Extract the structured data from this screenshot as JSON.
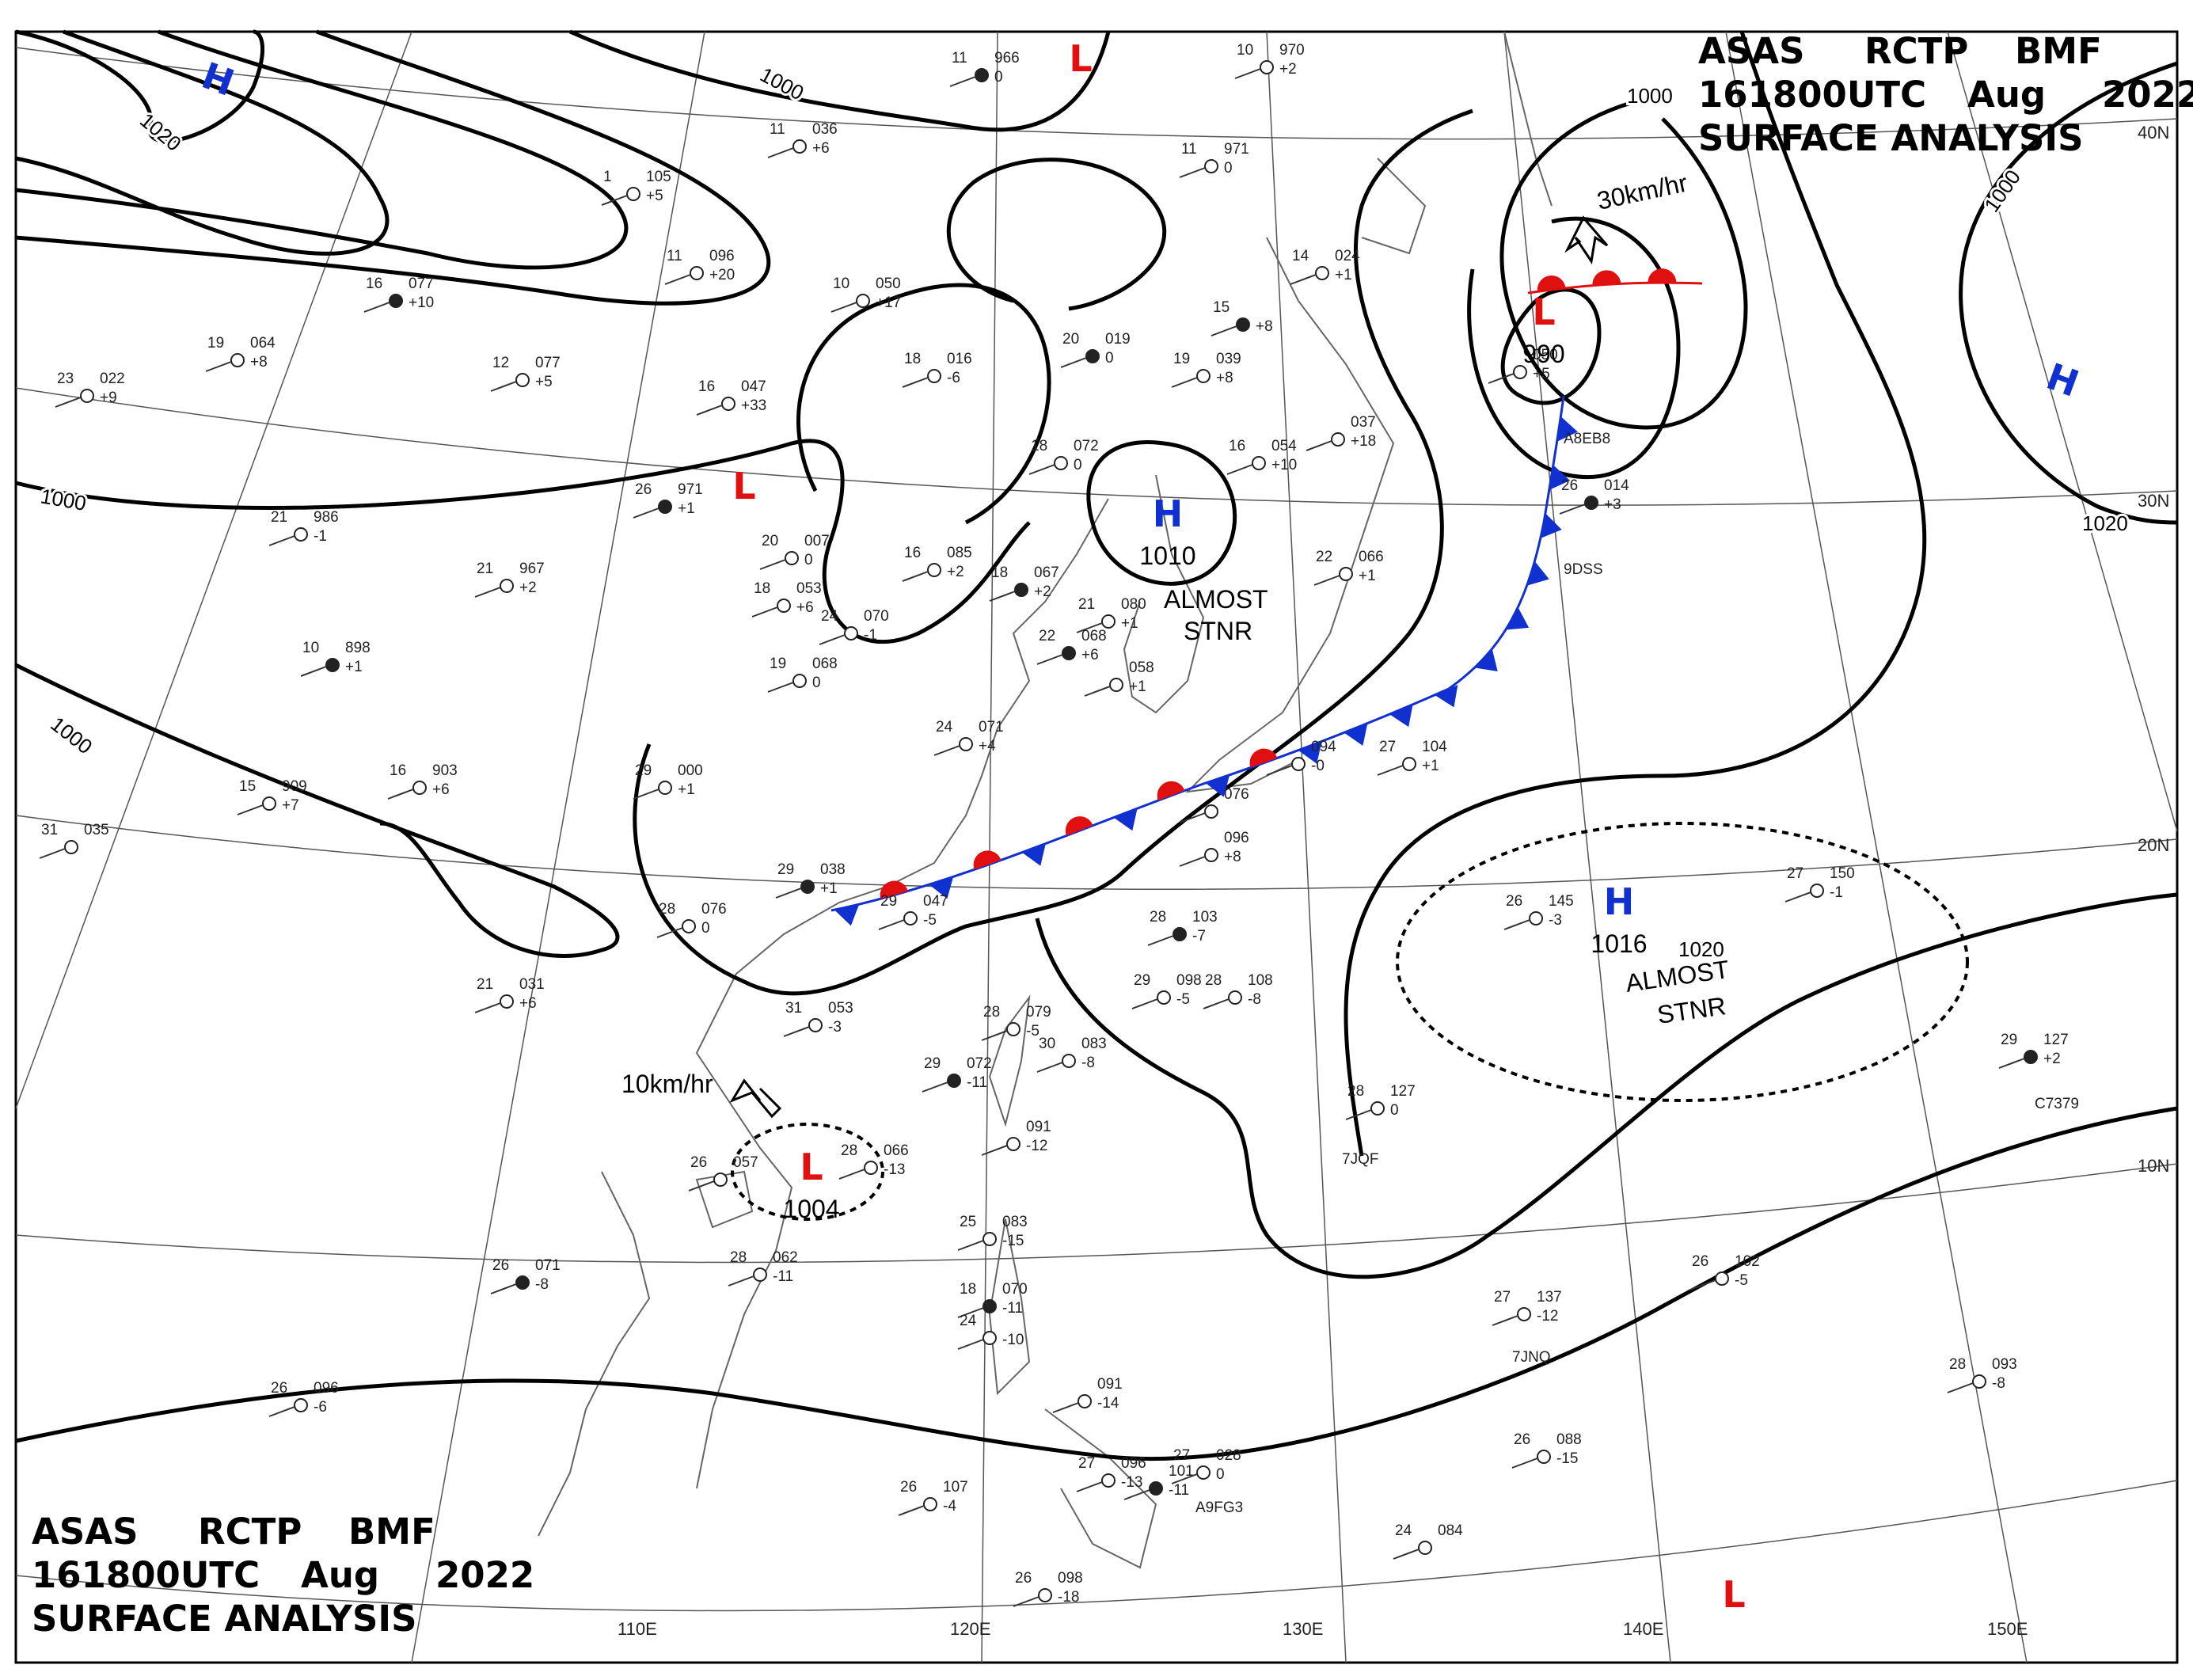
{
  "header_top": {
    "line1": [
      "ASAS",
      "RCTP",
      "BMF"
    ],
    "line2": [
      "161800UTC",
      "Aug",
      "2022"
    ],
    "line3": "SURFACE  ANALYSIS"
  },
  "header_bottom": {
    "line1": [
      "ASAS",
      "RCTP",
      "BMF"
    ],
    "line2": [
      "161800UTC",
      "Aug",
      "2022"
    ],
    "line3": "SURFACE  ANALYSIS"
  },
  "colors": {
    "high": "#1030d0",
    "low": "#e01010",
    "isobar": "#000000",
    "grid": "#555555",
    "coast": "#666666"
  },
  "grid_labels": {
    "lon": [
      "110E",
      "120E",
      "130E",
      "140E",
      "150E"
    ],
    "lat": [
      "40N",
      "30N",
      "20N",
      "10N"
    ]
  },
  "isobar_labels": [
    "1020",
    "1000",
    "1000",
    "1000",
    "1000",
    "1000",
    "1020",
    "1020"
  ],
  "pressure_centers": [
    {
      "type": "H",
      "value": ""
    },
    {
      "type": "L",
      "value": ""
    },
    {
      "type": "L",
      "value": ""
    },
    {
      "type": "H",
      "value": "1010"
    },
    {
      "type": "L",
      "value": "990"
    },
    {
      "type": "H",
      "value": ""
    },
    {
      "type": "H",
      "value": "1016"
    },
    {
      "type": "L",
      "value": "1004"
    },
    {
      "type": "L",
      "value": ""
    }
  ],
  "annotations": {
    "almost_stnr_1": [
      "ALMOST",
      "STNR"
    ],
    "almost_stnr_2": [
      "ALMOST",
      "STNR"
    ],
    "motion_typhoon": "30km/hr",
    "motion_low": "10km/hr"
  },
  "stations": [
    {
      "t": "11",
      "p": "966",
      "d": "0"
    },
    {
      "t": "11",
      "p": "036",
      "d": "+6"
    },
    {
      "t": "1",
      "p": "105",
      "d": "+5"
    },
    {
      "t": "11",
      "p": "096",
      "d": "+20"
    },
    {
      "t": "10",
      "p": "050",
      "d": "+17"
    },
    {
      "t": "16",
      "p": "077",
      "d": "+10"
    },
    {
      "t": "19",
      "p": "064",
      "d": "+8"
    },
    {
      "t": "23",
      "p": "022",
      "d": "+9"
    },
    {
      "t": "12",
      "p": "077",
      "d": "+5"
    },
    {
      "t": "16",
      "p": "047",
      "d": "+33"
    },
    {
      "t": "26",
      "p": "971",
      "d": "+1"
    },
    {
      "t": "21",
      "p": "986",
      "d": "-1"
    },
    {
      "t": "21",
      "p": "967",
      "d": "+2"
    },
    {
      "t": "20",
      "p": "007",
      "d": "0"
    },
    {
      "t": "18",
      "p": "053",
      "d": "+6"
    },
    {
      "t": "10",
      "p": "898",
      "d": "+1"
    },
    {
      "t": "15",
      "p": "909",
      "d": "+7"
    },
    {
      "t": "16",
      "p": "903",
      "d": "+6"
    },
    {
      "t": "31",
      "p": "035",
      "d": ""
    },
    {
      "t": "29",
      "p": "000",
      "d": "+1"
    },
    {
      "t": "29",
      "p": "038",
      "d": "+1"
    },
    {
      "t": "29",
      "p": "047",
      "d": "-5"
    },
    {
      "t": "21",
      "p": "031",
      "d": "+6"
    },
    {
      "t": "31",
      "p": "053",
      "d": "-3"
    },
    {
      "t": "28",
      "p": "076",
      "d": "0"
    },
    {
      "t": "20",
      "p": "019",
      "d": "0"
    },
    {
      "t": "18",
      "p": "016",
      "d": "-6"
    },
    {
      "t": "19",
      "p": "039",
      "d": "+8"
    },
    {
      "t": "18",
      "p": "072",
      "d": "0"
    },
    {
      "t": "16",
      "p": "054",
      "d": "+10"
    },
    {
      "t": "15",
      "p": "",
      "d": "+8"
    },
    {
      "t": "14",
      "p": "024",
      "d": "+1"
    },
    {
      "t": "11",
      "p": "971",
      "d": "0"
    },
    {
      "t": "10",
      "p": "970",
      "d": "+2"
    },
    {
      "t": "16",
      "p": "085",
      "d": "+2"
    },
    {
      "t": "18",
      "p": "067",
      "d": "+2"
    },
    {
      "t": "24",
      "p": "070",
      "d": "-1"
    },
    {
      "t": "19",
      "p": "068",
      "d": "0"
    },
    {
      "t": "24",
      "p": "071",
      "d": "+4"
    },
    {
      "t": "21",
      "p": "080",
      "d": "+1"
    },
    {
      "t": "22",
      "p": "068",
      "d": "+6"
    },
    {
      "t": "",
      "p": "058",
      "d": "+1"
    },
    {
      "t": "22",
      "p": "066",
      "d": "+1"
    },
    {
      "t": "",
      "p": "037",
      "d": "+18"
    },
    {
      "t": "",
      "p": "050",
      "d": "+5"
    },
    {
      "t": "26",
      "p": "014",
      "d": "+3"
    },
    {
      "t": "27",
      "p": "104",
      "d": "+1"
    },
    {
      "t": "",
      "p": "094",
      "d": "-0"
    },
    {
      "t": "",
      "p": "076",
      "d": ""
    },
    {
      "t": "",
      "p": "096",
      "d": "+8"
    },
    {
      "t": "28",
      "p": "103",
      "d": "-7"
    },
    {
      "t": "29",
      "p": "098",
      "d": "-5"
    },
    {
      "t": "28",
      "p": "108",
      "d": "-8"
    },
    {
      "t": "28",
      "p": "079",
      "d": "-5"
    },
    {
      "t": "30",
      "p": "083",
      "d": "-8"
    },
    {
      "t": "29",
      "p": "072",
      "d": "-11"
    },
    {
      "t": "",
      "p": "091",
      "d": "-12"
    },
    {
      "t": "28",
      "p": "066",
      "d": "-13"
    },
    {
      "t": "26",
      "p": "057",
      "d": ""
    },
    {
      "t": "28",
      "p": "062",
      "d": "-11"
    },
    {
      "t": "26",
      "p": "071",
      "d": "-8"
    },
    {
      "t": "26",
      "p": "096",
      "d": "-6"
    },
    {
      "t": "28",
      "p": "127",
      "d": "0"
    },
    {
      "t": "26",
      "p": "145",
      "d": "-3"
    },
    {
      "t": "27",
      "p": "150",
      "d": "-1"
    },
    {
      "t": "29",
      "p": "127",
      "d": "+2"
    },
    {
      "t": "26",
      "p": "102",
      "d": "-5"
    },
    {
      "t": "27",
      "p": "137",
      "d": "-12"
    },
    {
      "t": "28",
      "p": "093",
      "d": "-8"
    },
    {
      "t": "25",
      "p": "083",
      "d": "-15"
    },
    {
      "t": "18",
      "p": "070",
      "d": "-11"
    },
    {
      "t": "24",
      "p": "",
      "d": "-10"
    },
    {
      "t": "",
      "p": "091",
      "d": "-14"
    },
    {
      "t": "27",
      "p": "028",
      "d": "0"
    },
    {
      "t": "27",
      "p": "096",
      "d": "-13"
    },
    {
      "t": "",
      "p": "101",
      "d": "-11"
    },
    {
      "t": "26",
      "p": "088",
      "d": "-15"
    },
    {
      "t": "26",
      "p": "107",
      "d": "-4"
    },
    {
      "t": "24",
      "p": "084",
      "d": ""
    },
    {
      "t": "26",
      "p": "098",
      "d": "-18"
    }
  ],
  "ship_ids": [
    "A8EB8",
    "9DSS",
    "7JQF",
    "C7379",
    "7JNQ",
    "A9FG3"
  ]
}
